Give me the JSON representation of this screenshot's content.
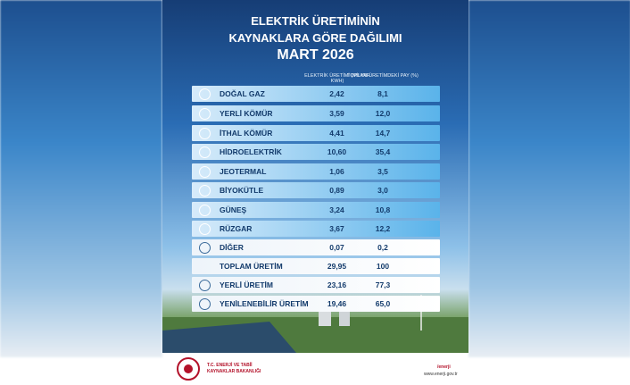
{
  "header": {
    "title": [
      "ELEKTRİK ÜRETİMİNİN",
      "KAYNAKLARA GÖRE DAĞILIMI",
      "MART 2026"
    ]
  },
  "table": {
    "columns": [
      "ELEKTRİK ÜRETİMİ (MİLYAR KWH)",
      "TOPLAM ÜRETİMDEKİ PAY (%)"
    ],
    "rows": [
      [
        "DOĞAL GAZ",
        "2,42",
        "8,1"
      ],
      [
        "YERLİ KÖMÜR",
        "3,59",
        "12,0"
      ],
      [
        "İTHAL KÖMÜR",
        "4,41",
        "14,7"
      ],
      [
        "HİDROELEKTRİK",
        "10,60",
        "35,4"
      ],
      [
        "JEOTERMAL",
        "1,06",
        "3,5"
      ],
      [
        "BİYOKÜTLE",
        "0,89",
        "3,0"
      ],
      [
        "GÜNEŞ",
        "3,24",
        "10,8"
      ],
      [
        "RÜZGAR",
        "3,67",
        "12,2"
      ],
      [
        "DİĞER",
        "0,07",
        "0,2"
      ],
      [
        "TOPLAM ÜRETİM",
        "29,95",
        "100"
      ],
      [
        "YERLİ ÜRETİM",
        "23,16",
        "77,3"
      ],
      [
        "YENİLENEBİLİR ÜRETİM",
        "19,46",
        "65,0"
      ]
    ]
  },
  "footer": {
    "ministry": [
      "T.C. ENERJİ VE TABİİ",
      "KAYNAKLAR BAKANLIĞI"
    ],
    "social": "/enerji",
    "url": "www.enerji.gov.tr"
  }
}
